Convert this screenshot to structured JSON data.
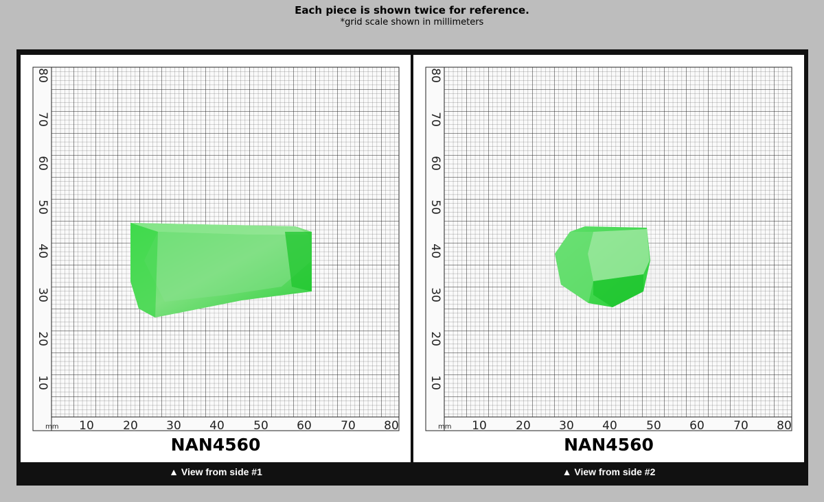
{
  "header": {
    "title": "Each piece is shown twice for reference.",
    "subtitle": "*grid scale shown in millimeters"
  },
  "colors": {
    "background": "#bdbdbd",
    "frame": "#111111",
    "gem_green": "#3fd84c"
  },
  "grid": {
    "unit": "mm",
    "x_ticks": [
      "10",
      "20",
      "30",
      "40",
      "50",
      "60",
      "70",
      "80"
    ],
    "y_ticks": [
      "10",
      "20",
      "30",
      "40",
      "50",
      "60",
      "70",
      "80"
    ]
  },
  "panels": [
    {
      "code": "NAN4560",
      "caption": "▲ View from side #1"
    },
    {
      "code": "NAN4560",
      "caption": "▲ View from side #2"
    }
  ]
}
